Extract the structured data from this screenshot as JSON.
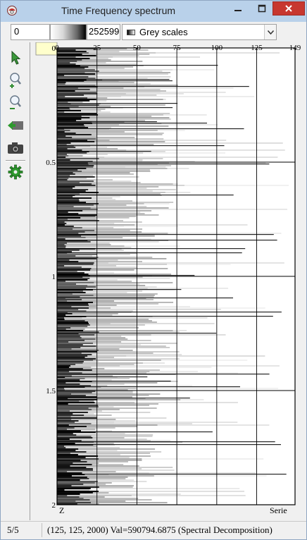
{
  "window": {
    "title": "Time Frequency spectrum"
  },
  "colorbar": {
    "min_value": "0",
    "max_value": "252599",
    "scale_name": "Grey scales"
  },
  "toolbar": {
    "icons": [
      "pointer-icon",
      "zoom-in-icon",
      "zoom-out-icon",
      "view-all-icon",
      "camera-icon",
      "settings-icon"
    ]
  },
  "plot": {
    "x_ticks": [
      "0",
      "25",
      "50",
      "75",
      "100",
      "125",
      "149"
    ],
    "y_ticks": [
      "0",
      "0.5",
      "1",
      "1.5",
      "2"
    ],
    "z_label": "Z",
    "series_label": "Serie"
  },
  "chart_data": {
    "type": "heatmap",
    "title": "",
    "xlabel": "Serie",
    "ylabel": "Z",
    "xlim": [
      0,
      149
    ],
    "ylim": [
      0,
      2
    ],
    "x_ticks": [
      0,
      25,
      50,
      75,
      100,
      125,
      149
    ],
    "y_ticks": [
      0,
      0.5,
      1,
      1.5,
      2
    ],
    "color_scale": "Grey scales",
    "value_range": [
      0,
      252599
    ],
    "grid": true
  },
  "status": {
    "page": "5/5",
    "readout": "(125, 125, 2000)  Val=590794.6875 (Spectral Decomposition)"
  }
}
